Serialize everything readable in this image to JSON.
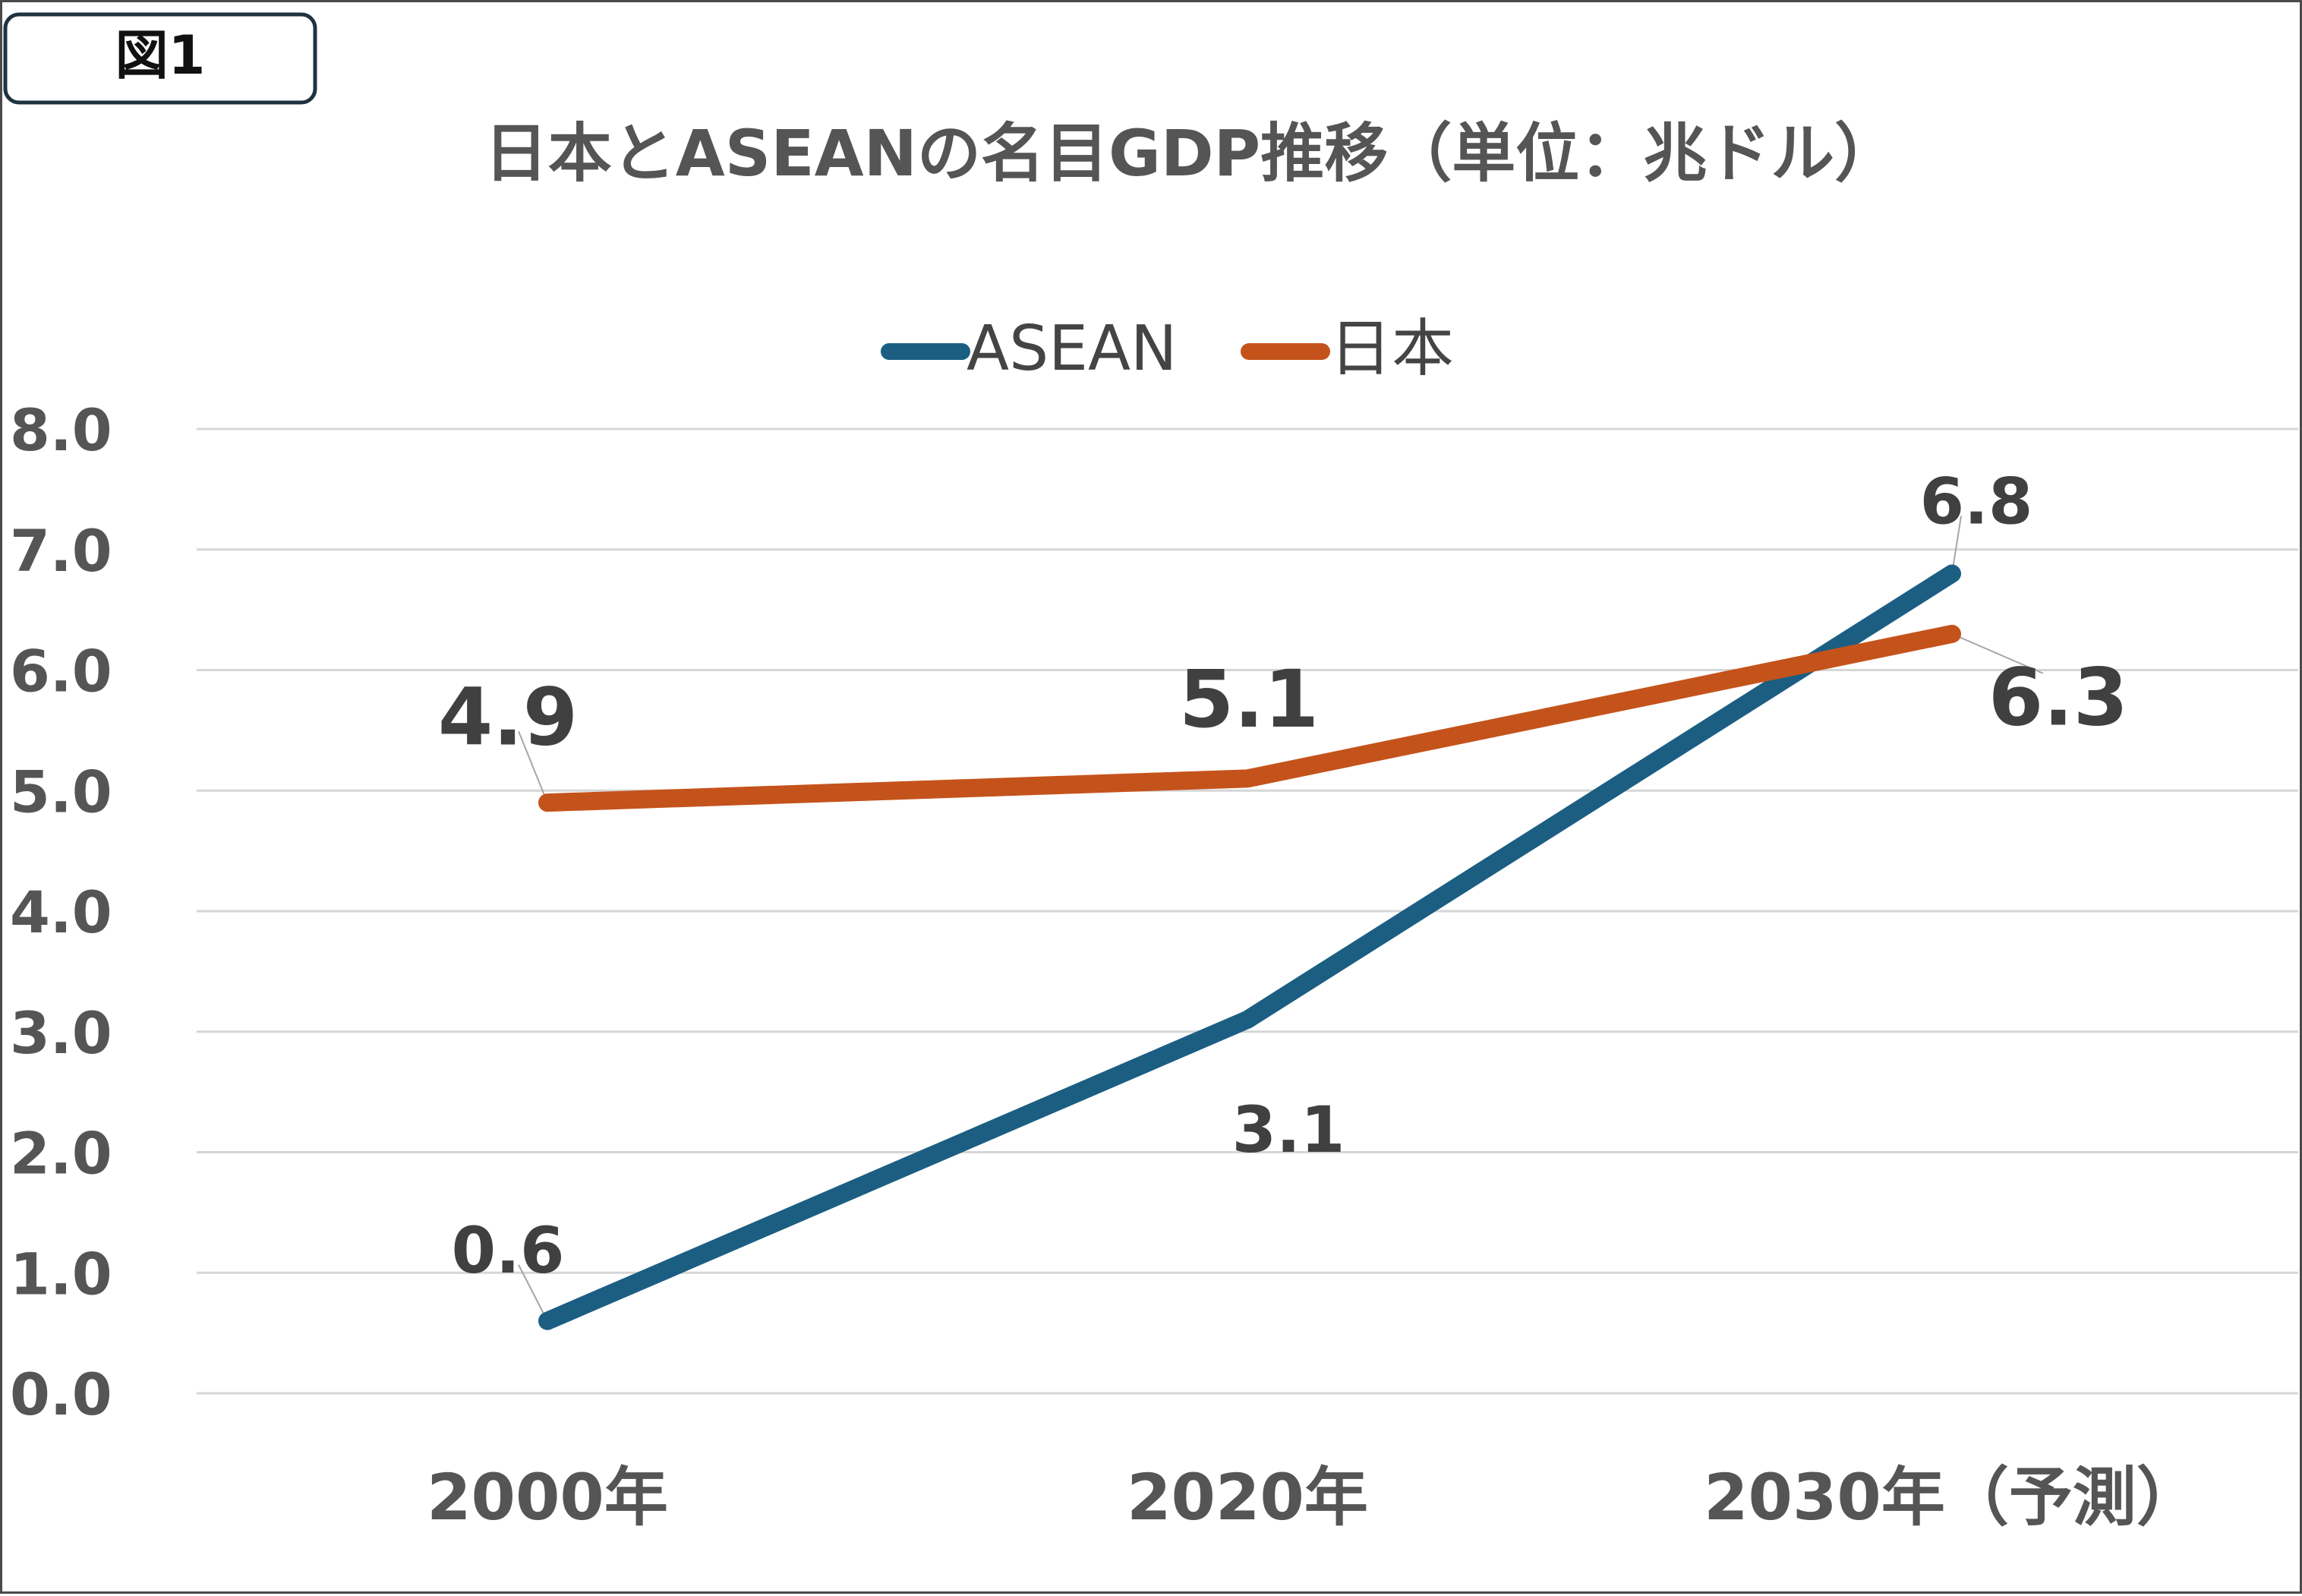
{
  "figure_label": "図1",
  "chart_data": {
    "type": "line",
    "title": "日本とASEANの名目GDP推移（単位：兆ドル）",
    "categories": [
      "2000年",
      "2020年",
      "2030年（予測）"
    ],
    "series": [
      {
        "name": "ASEAN",
        "color": "#1b5e82",
        "values": [
          0.6,
          3.1,
          6.8
        ],
        "labels": [
          "0.6",
          "3.1",
          "6.8"
        ]
      },
      {
        "name": "日本",
        "color": "#c4531b",
        "values": [
          4.9,
          5.1,
          6.3
        ],
        "labels": [
          "4.9",
          "5.1",
          "6.3"
        ]
      }
    ],
    "ylim": [
      0,
      8
    ],
    "y_ticks": [
      "0.0",
      "1.0",
      "2.0",
      "3.0",
      "4.0",
      "5.0",
      "6.0",
      "7.0",
      "8.0"
    ],
    "gridlines": true,
    "legend_position": "top-center",
    "xlabel": "",
    "ylabel": ""
  }
}
